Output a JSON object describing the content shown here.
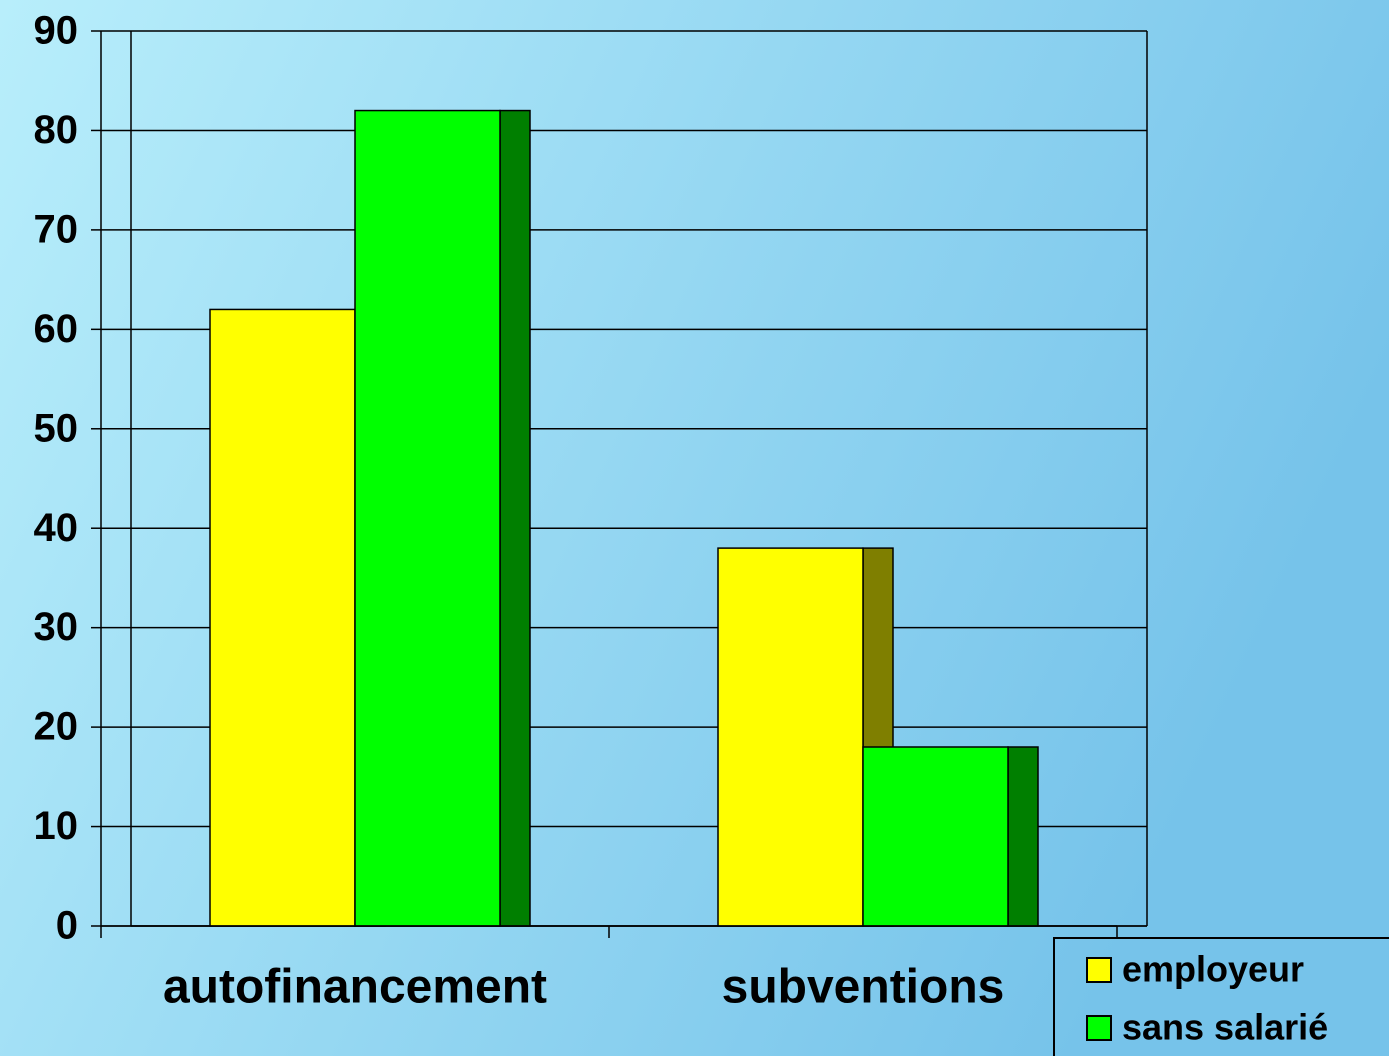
{
  "chart_data": {
    "type": "bar3d",
    "categories": [
      "autofinancement",
      "subventions"
    ],
    "series": [
      {
        "name": "employeur",
        "color": "#ffff00",
        "values": [
          62,
          38
        ]
      },
      {
        "name": "sans salarié",
        "color": "#00ff00",
        "values": [
          82,
          18
        ]
      }
    ],
    "ylim": [
      0,
      90
    ],
    "yticks": [
      0,
      10,
      20,
      30,
      40,
      50,
      60,
      70,
      80,
      90
    ],
    "grid": true,
    "legend": "bottom-right"
  }
}
